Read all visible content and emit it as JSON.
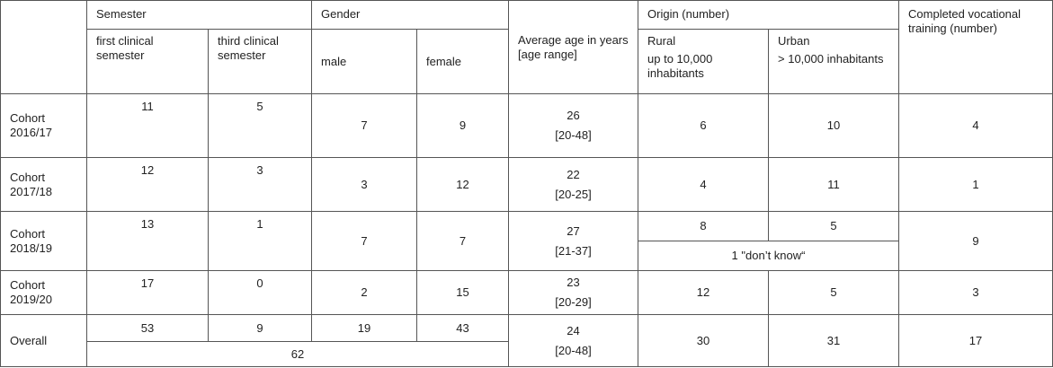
{
  "header": {
    "semester": "Semester",
    "first_clinical": "first clinical semester",
    "third_clinical": "third clinical semester",
    "gender": "Gender",
    "male": "male",
    "female": "female",
    "avg_age": "Average age in years [age range]",
    "origin": "Origin (number)",
    "rural": "Rural",
    "rural_desc": "up to 10,000 inhabitants",
    "urban": "Urban",
    "urban_desc": "> 10,000 inhabitants",
    "vocational": "Completed vocational training (number)"
  },
  "rows": [
    {
      "label": "Cohort 2016/17",
      "first": "11",
      "third": "5",
      "male": "7",
      "female": "9",
      "age": "26",
      "range": "[20-48]",
      "rural": "6",
      "urban": "10",
      "vocational": "4"
    },
    {
      "label": "Cohort 2017/18",
      "first": "12",
      "third": "3",
      "male": "3",
      "female": "12",
      "age": "22",
      "range": "[20-25]",
      "rural": "4",
      "urban": "11",
      "vocational": "1"
    },
    {
      "label": "Cohort 2018/19",
      "first": "13",
      "third": "1",
      "male": "7",
      "female": "7",
      "age": "27",
      "range": "[21-37]",
      "rural": "8",
      "urban": "5",
      "unknown": "1 \"don’t know“",
      "vocational": "9"
    },
    {
      "label": "Cohort 2019/20",
      "first": "17",
      "third": "0",
      "male": "2",
      "female": "15",
      "age": "23",
      "range": "[20-29]",
      "rural": "12",
      "urban": "5",
      "vocational": "3"
    }
  ],
  "overall": {
    "label": "Overall",
    "first": "53",
    "third": "9",
    "male": "19",
    "female": "43",
    "total": "62",
    "age": "24",
    "range": "[20-48]",
    "rural": "30",
    "urban": "31",
    "vocational": "17"
  }
}
